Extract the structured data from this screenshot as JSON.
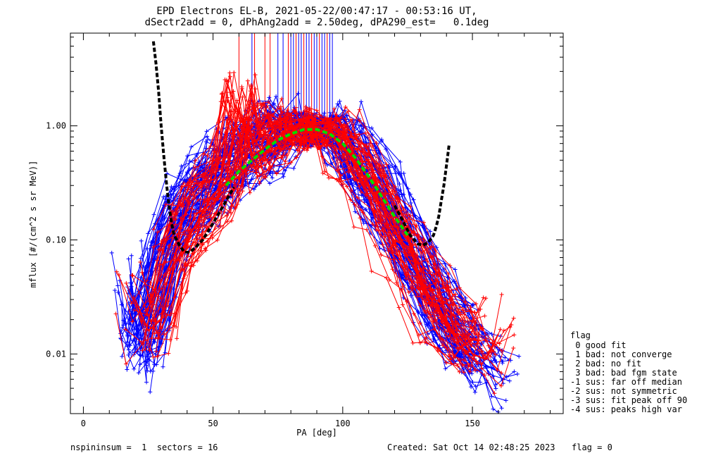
{
  "chart_data": {
    "type": "scatter",
    "title_line1": "EPD Electrons EL-B, 2021-05-22/00:47:17 - 00:53:16 UT,",
    "title_line2": "dSectr2add = 0, dPhAng2add = 2.50deg, dPA290_est=   0.1deg",
    "xlabel": "PA [deg]",
    "ylabel": "mflux [#/(cm^2 s sr MeV)]",
    "xlim": [
      -5,
      185
    ],
    "ylim": [
      0.003,
      6.5
    ],
    "yscale": "log",
    "x_ticks": [
      "0",
      "50",
      "100",
      "150"
    ],
    "x_tick_values": [
      0,
      50,
      100,
      150
    ],
    "y_ticks": [
      "0.01",
      "0.10",
      "1.00"
    ],
    "y_tick_values": [
      0.01,
      0.1,
      1.0
    ],
    "series": [
      {
        "color": "#0000ff",
        "marker": "+",
        "description_values": "blue flux traces",
        "points": [
          [
            18,
            0.05
          ],
          [
            20,
            0.02
          ],
          [
            22,
            0.011
          ],
          [
            25,
            0.017
          ],
          [
            30,
            0.05
          ],
          [
            35,
            0.12
          ],
          [
            40,
            0.2
          ],
          [
            45,
            0.25
          ],
          [
            50,
            0.33
          ],
          [
            55,
            0.42
          ],
          [
            60,
            0.55
          ],
          [
            65,
            0.63
          ],
          [
            70,
            0.72
          ],
          [
            75,
            0.82
          ],
          [
            80,
            0.92
          ],
          [
            85,
            0.95
          ],
          [
            90,
            0.93
          ],
          [
            95,
            0.88
          ],
          [
            100,
            0.7
          ],
          [
            105,
            0.5
          ],
          [
            110,
            0.33
          ],
          [
            115,
            0.22
          ],
          [
            120,
            0.14
          ],
          [
            125,
            0.08
          ],
          [
            130,
            0.05
          ],
          [
            135,
            0.03
          ],
          [
            140,
            0.02
          ],
          [
            145,
            0.014
          ],
          [
            150,
            0.011
          ],
          [
            155,
            0.008
          ],
          [
            160,
            0.007
          ]
        ]
      },
      {
        "color": "#ff0000",
        "marker": "+",
        "points": [
          [
            20,
            0.03
          ],
          [
            25,
            0.016
          ],
          [
            30,
            0.02
          ],
          [
            35,
            0.06
          ],
          [
            40,
            0.1
          ],
          [
            45,
            0.16
          ],
          [
            50,
            0.25
          ],
          [
            55,
            0.32
          ],
          [
            60,
            1.4
          ],
          [
            65,
            0.55
          ],
          [
            70,
            0.65
          ],
          [
            75,
            0.75
          ],
          [
            80,
            0.85
          ],
          [
            83,
            1.05
          ],
          [
            85,
            0.98
          ],
          [
            90,
            0.9
          ],
          [
            95,
            0.85
          ],
          [
            100,
            0.65
          ],
          [
            105,
            0.48
          ],
          [
            110,
            0.3
          ],
          [
            115,
            0.2
          ],
          [
            120,
            0.12
          ],
          [
            125,
            0.07
          ],
          [
            130,
            0.045
          ],
          [
            135,
            0.028
          ],
          [
            140,
            0.018
          ],
          [
            145,
            0.014
          ],
          [
            150,
            0.01
          ],
          [
            155,
            0.009
          ],
          [
            160,
            0.015
          ]
        ]
      }
    ],
    "fit_black_left": [
      [
        27,
        5.5
      ],
      [
        28,
        3.5
      ],
      [
        29,
        2.0
      ],
      [
        30,
        1.0
      ],
      [
        31,
        0.55
      ],
      [
        32,
        0.32
      ],
      [
        33,
        0.2
      ],
      [
        34,
        0.14
      ],
      [
        35,
        0.11
      ],
      [
        37,
        0.09
      ],
      [
        39,
        0.078
      ],
      [
        41,
        0.078
      ],
      [
        43,
        0.085
      ],
      [
        46,
        0.1
      ],
      [
        50,
        0.14
      ],
      [
        54,
        0.2
      ],
      [
        58,
        0.29
      ]
    ],
    "fit_black_right": [
      [
        120,
        0.2
      ],
      [
        123,
        0.15
      ],
      [
        126,
        0.11
      ],
      [
        129,
        0.092
      ],
      [
        131,
        0.09
      ],
      [
        133,
        0.095
      ],
      [
        135,
        0.11
      ],
      [
        136,
        0.13
      ],
      [
        137,
        0.16
      ],
      [
        138,
        0.22
      ],
      [
        139,
        0.3
      ],
      [
        140,
        0.45
      ],
      [
        141,
        0.68
      ]
    ],
    "fit_green": [
      [
        55,
        0.3
      ],
      [
        60,
        0.4
      ],
      [
        65,
        0.5
      ],
      [
        70,
        0.62
      ],
      [
        75,
        0.75
      ],
      [
        80,
        0.85
      ],
      [
        85,
        0.93
      ],
      [
        90,
        0.93
      ],
      [
        95,
        0.85
      ],
      [
        100,
        0.7
      ],
      [
        105,
        0.52
      ],
      [
        110,
        0.36
      ],
      [
        115,
        0.24
      ],
      [
        120,
        0.16
      ],
      [
        125,
        0.11
      ]
    ]
  },
  "legend": {
    "title": "flag",
    "items": [
      " 0 good fit",
      " 1 bad: not converge",
      " 2 bad: no fit",
      " 3 bad: bad fgm state",
      "-1 sus: far off median",
      "-2 sus: not symmetric",
      "-3 sus: fit peak off 90",
      "-4 sus: peaks high var"
    ]
  },
  "footer": {
    "left": "nspininsum =  1  sectors = 16",
    "created": "Created: Sat Oct 14 02:48:25 2023",
    "flag": "flag = 0"
  },
  "colors": {
    "blue": "#0000ff",
    "red": "#ff0000",
    "black": "#000000",
    "green": "#00dd00"
  }
}
